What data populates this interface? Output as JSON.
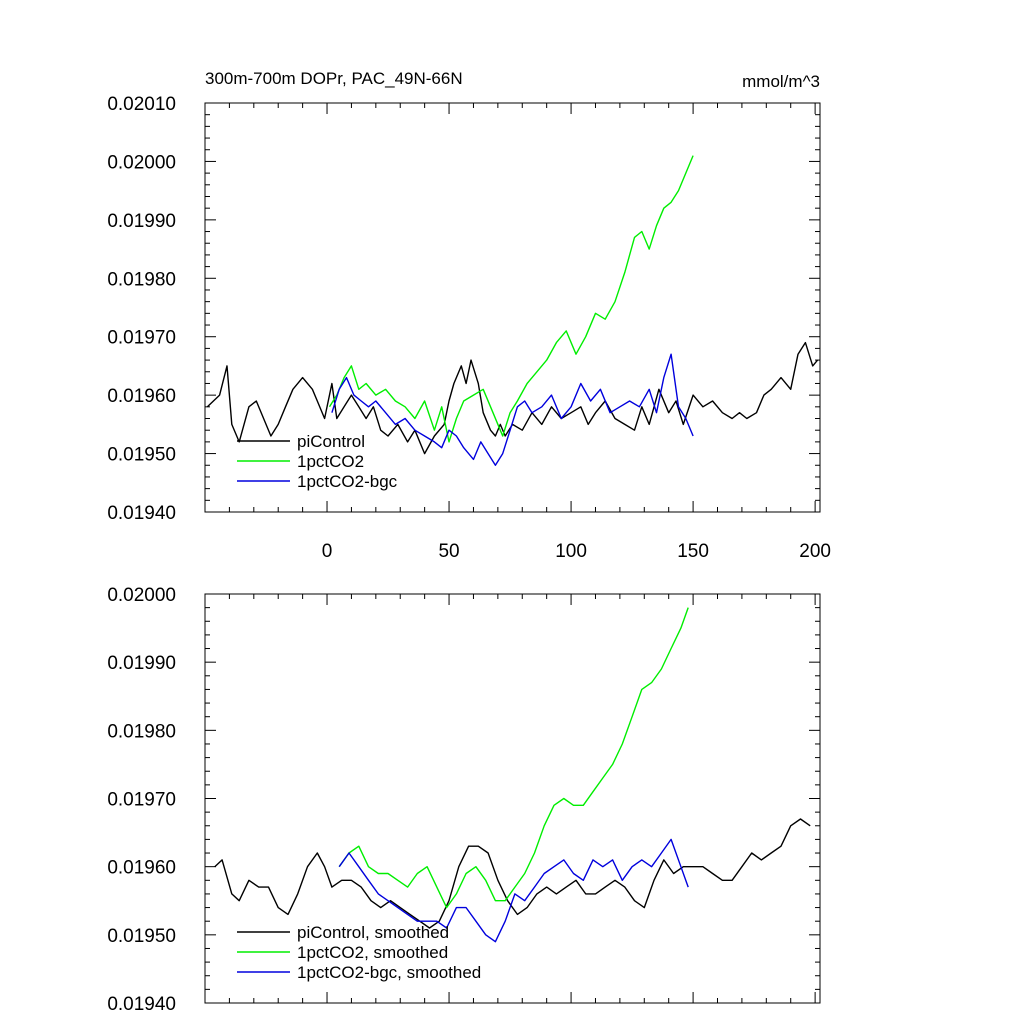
{
  "chart_data": [
    {
      "type": "line",
      "title": "300m-700m DOPr, PAC_49N-66N",
      "units": "mmol/m^3",
      "xlim": [
        -50,
        202
      ],
      "ylim": [
        0.0194,
        0.0201
      ],
      "xticks": [
        0,
        50,
        100,
        150,
        200
      ],
      "xtick_labels": [
        "0",
        "50",
        "100",
        "150",
        "200"
      ],
      "yticks": [
        0.0194,
        0.0195,
        0.0196,
        0.0197,
        0.0198,
        0.0199,
        0.02,
        0.0201
      ],
      "ytick_labels": [
        "0.01940",
        "0.01950",
        "0.01960",
        "0.01970",
        "0.01980",
        "0.01990",
        "0.02000",
        "0.02010"
      ],
      "grid": false,
      "legend_position": "bottom-left",
      "series": [
        {
          "name": "piControl",
          "color": "#000000",
          "x": [
            -49,
            -44,
            -41,
            -39,
            -36,
            -32,
            -29,
            -26,
            -23,
            -20,
            -17,
            -14,
            -10,
            -6,
            -4,
            -1,
            2,
            4,
            7,
            10,
            13,
            16,
            19,
            22,
            25,
            29,
            33,
            36,
            40,
            44,
            48,
            50,
            52,
            55,
            57,
            59,
            62,
            64,
            67,
            69,
            71,
            73,
            76,
            80,
            84,
            88,
            92,
            96,
            100,
            104,
            107,
            110,
            114,
            118,
            122,
            126,
            129,
            132,
            136,
            140,
            143,
            146,
            150,
            154,
            158,
            162,
            166,
            169,
            172,
            176,
            179,
            182,
            186,
            190,
            193,
            196,
            199,
            201
          ],
          "values": [
            0.01958,
            0.0196,
            0.01965,
            0.01955,
            0.01952,
            0.01958,
            0.01959,
            0.01956,
            0.01953,
            0.01955,
            0.01958,
            0.01961,
            0.01963,
            0.01961,
            0.01959,
            0.01956,
            0.01962,
            0.01956,
            0.01958,
            0.0196,
            0.01958,
            0.01956,
            0.01958,
            0.01954,
            0.01953,
            0.01955,
            0.01952,
            0.01954,
            0.0195,
            0.01953,
            0.01955,
            0.01959,
            0.01962,
            0.01965,
            0.01962,
            0.01966,
            0.01962,
            0.01957,
            0.01954,
            0.01953,
            0.01955,
            0.01953,
            0.01955,
            0.01954,
            0.01957,
            0.01955,
            0.01958,
            0.01956,
            0.01957,
            0.01958,
            0.01955,
            0.01957,
            0.01959,
            0.01956,
            0.01955,
            0.01954,
            0.01958,
            0.01955,
            0.01961,
            0.01957,
            0.01959,
            0.01955,
            0.0196,
            0.01958,
            0.01959,
            0.01957,
            0.01956,
            0.01957,
            0.01956,
            0.01957,
            0.0196,
            0.01961,
            0.01963,
            0.01961,
            0.01967,
            0.01969,
            0.01965,
            0.01966
          ]
        },
        {
          "name": "1pctCO2",
          "color": "#00ee00",
          "x": [
            1,
            4,
            7,
            10,
            13,
            16,
            20,
            24,
            28,
            32,
            36,
            40,
            44,
            47,
            50,
            53,
            56,
            60,
            64,
            68,
            72,
            75,
            78,
            82,
            86,
            90,
            94,
            98,
            102,
            106,
            110,
            114,
            118,
            122,
            126,
            129,
            132,
            135,
            138,
            141,
            144,
            147,
            150
          ],
          "values": [
            0.01958,
            0.0196,
            0.01963,
            0.01965,
            0.01961,
            0.01962,
            0.0196,
            0.01961,
            0.01959,
            0.01958,
            0.01956,
            0.01959,
            0.01954,
            0.01958,
            0.01952,
            0.01956,
            0.01959,
            0.0196,
            0.01961,
            0.01957,
            0.01953,
            0.01957,
            0.01959,
            0.01962,
            0.01964,
            0.01966,
            0.01969,
            0.01971,
            0.01967,
            0.0197,
            0.01974,
            0.01973,
            0.01976,
            0.01981,
            0.01987,
            0.01988,
            0.01985,
            0.01989,
            0.01992,
            0.01993,
            0.01995,
            0.01998,
            0.02001
          ]
        },
        {
          "name": "1pctCO2-bgc",
          "color": "#0000dd",
          "x": [
            2,
            5,
            8,
            11,
            14,
            17,
            20,
            24,
            28,
            32,
            36,
            40,
            44,
            47,
            50,
            53,
            56,
            60,
            63,
            66,
            69,
            72,
            75,
            78,
            81,
            84,
            88,
            92,
            96,
            100,
            104,
            108,
            112,
            116,
            120,
            124,
            128,
            132,
            135,
            138,
            141,
            144,
            147,
            150
          ],
          "values": [
            0.01957,
            0.01961,
            0.01963,
            0.0196,
            0.01959,
            0.01958,
            0.01959,
            0.01957,
            0.01955,
            0.01956,
            0.01954,
            0.01953,
            0.01952,
            0.01951,
            0.01954,
            0.01953,
            0.01951,
            0.01949,
            0.01952,
            0.0195,
            0.01948,
            0.0195,
            0.01954,
            0.01958,
            0.01959,
            0.01957,
            0.01958,
            0.0196,
            0.01956,
            0.01958,
            0.01962,
            0.01959,
            0.01961,
            0.01957,
            0.01958,
            0.01959,
            0.01958,
            0.01961,
            0.01957,
            0.01963,
            0.01967,
            0.01958,
            0.01956,
            0.01953
          ]
        }
      ]
    },
    {
      "type": "line",
      "title": "",
      "xlim": [
        -50,
        202
      ],
      "ylim": [
        0.0194,
        0.02
      ],
      "xticks": [
        0,
        50,
        100,
        150,
        200
      ],
      "yticks": [
        0.0194,
        0.0195,
        0.0196,
        0.0197,
        0.0198,
        0.0199,
        0.02
      ],
      "ytick_labels": [
        "0.01940",
        "0.01950",
        "0.01960",
        "0.01970",
        "0.01980",
        "0.01990",
        "0.02000"
      ],
      "grid": false,
      "legend_position": "bottom-left",
      "series": [
        {
          "name": "piControl, smoothed",
          "color": "#000000",
          "x": [
            -46,
            -43,
            -39,
            -36,
            -32,
            -28,
            -24,
            -20,
            -16,
            -12,
            -8,
            -4,
            -1,
            2,
            6,
            10,
            14,
            18,
            22,
            26,
            30,
            34,
            38,
            42,
            46,
            50,
            54,
            58,
            62,
            66,
            70,
            74,
            78,
            82,
            86,
            90,
            94,
            98,
            102,
            106,
            110,
            114,
            118,
            122,
            126,
            130,
            134,
            138,
            142,
            146,
            150,
            154,
            158,
            162,
            166,
            170,
            174,
            178,
            182,
            186,
            190,
            194,
            198
          ],
          "values": [
            0.0196,
            0.01961,
            0.01956,
            0.01955,
            0.01958,
            0.01957,
            0.01957,
            0.01954,
            0.01953,
            0.01956,
            0.0196,
            0.01962,
            0.0196,
            0.01957,
            0.01958,
            0.01958,
            0.01957,
            0.01955,
            0.01954,
            0.01955,
            0.01954,
            0.01953,
            0.01952,
            0.01951,
            0.01952,
            0.01955,
            0.0196,
            0.01963,
            0.01963,
            0.01962,
            0.01958,
            0.01955,
            0.01953,
            0.01954,
            0.01956,
            0.01957,
            0.01956,
            0.01957,
            0.01958,
            0.01956,
            0.01956,
            0.01957,
            0.01958,
            0.01957,
            0.01955,
            0.01954,
            0.01958,
            0.01961,
            0.01959,
            0.0196,
            0.0196,
            0.0196,
            0.01959,
            0.01958,
            0.01958,
            0.0196,
            0.01962,
            0.01961,
            0.01962,
            0.01963,
            0.01966,
            0.01967,
            0.01966
          ]
        },
        {
          "name": "1pctCO2, smoothed",
          "color": "#00ee00",
          "x": [
            5,
            9,
            13,
            17,
            21,
            25,
            29,
            33,
            37,
            41,
            45,
            49,
            53,
            57,
            61,
            65,
            69,
            73,
            77,
            81,
            85,
            89,
            93,
            97,
            101,
            105,
            109,
            113,
            117,
            121,
            125,
            129,
            133,
            137,
            141,
            145,
            148
          ],
          "values": [
            0.0196,
            0.01962,
            0.01963,
            0.0196,
            0.01959,
            0.01959,
            0.01958,
            0.01957,
            0.01959,
            0.0196,
            0.01957,
            0.01954,
            0.01956,
            0.01959,
            0.0196,
            0.01958,
            0.01955,
            0.01955,
            0.01957,
            0.01959,
            0.01962,
            0.01966,
            0.01969,
            0.0197,
            0.01969,
            0.01969,
            0.01971,
            0.01973,
            0.01975,
            0.01978,
            0.01982,
            0.01986,
            0.01987,
            0.01989,
            0.01992,
            0.01995,
            0.01998
          ]
        },
        {
          "name": "1pctCO2-bgc, smoothed",
          "color": "#0000dd",
          "x": [
            5,
            9,
            13,
            17,
            21,
            25,
            29,
            33,
            37,
            41,
            45,
            49,
            53,
            57,
            61,
            65,
            69,
            73,
            77,
            81,
            85,
            89,
            93,
            97,
            101,
            105,
            109,
            113,
            117,
            121,
            125,
            129,
            133,
            137,
            141,
            145,
            148
          ],
          "values": [
            0.0196,
            0.01962,
            0.0196,
            0.01958,
            0.01956,
            0.01955,
            0.01954,
            0.01953,
            0.01952,
            0.01952,
            0.01952,
            0.01951,
            0.01954,
            0.01954,
            0.01952,
            0.0195,
            0.01949,
            0.01952,
            0.01956,
            0.01955,
            0.01957,
            0.01959,
            0.0196,
            0.01961,
            0.01959,
            0.01958,
            0.01961,
            0.0196,
            0.01961,
            0.01958,
            0.0196,
            0.01961,
            0.0196,
            0.01962,
            0.01964,
            0.0196,
            0.01957
          ]
        }
      ]
    }
  ]
}
